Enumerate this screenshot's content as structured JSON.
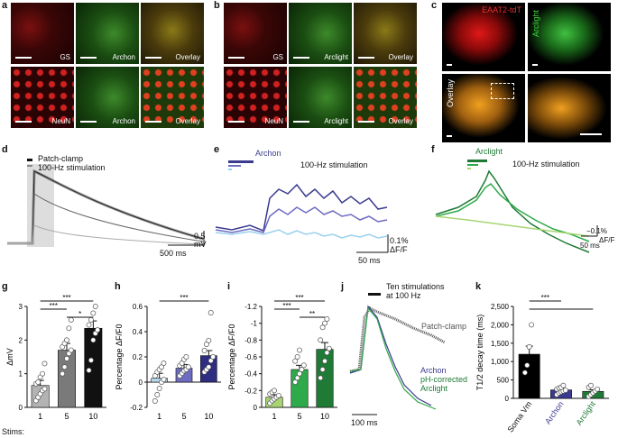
{
  "panel_labels": {
    "a": "a",
    "b": "b",
    "c": "c",
    "d": "d",
    "e": "e",
    "f": "f",
    "g": "g",
    "h": "h",
    "i": "i",
    "j": "j",
    "k": "k"
  },
  "panel_a": {
    "top": [
      "GS",
      "Archon",
      "Overlay"
    ],
    "bottom": [
      "NeuN",
      "Archon",
      "Overlay"
    ]
  },
  "panel_b": {
    "top": [
      "GS",
      "Arclight",
      "Overlay"
    ],
    "bottom": [
      "NeuN",
      "Arclight",
      "Overlay"
    ]
  },
  "panel_c": {
    "label_red": "EAAT2-tdT",
    "label_green": "Arclight",
    "label_overlay": "Overlay"
  },
  "panel_d": {
    "legend_patch": "Patch-clamp",
    "legend_stim": "100-Hz stimulation",
    "scale_mv_value": "0.5",
    "scale_mv_unit": "mV",
    "scale_time": "500 ms"
  },
  "panel_e": {
    "legend_name": "Archon",
    "legend_stim": "100-Hz stimulation",
    "scale_pct": "0.1%",
    "scale_dff": "ΔF/F",
    "scale_time": "50 ms"
  },
  "panel_f": {
    "legend_name": "Arclight",
    "legend_stim": "100-Hz stimulation",
    "scale_pct": "−0.1%",
    "scale_dff": "ΔF/F",
    "scale_time": "50 ms"
  },
  "panel_j": {
    "title_line1": "Ten stimulations",
    "title_line2": "at 100 Hz",
    "patch": "Patch-clamp",
    "archon": "Archon",
    "ph1": "pH-corrected",
    "ph2": "Arclight",
    "scale_time": "100 ms"
  },
  "stims_label": "Stims:",
  "chart_data": [
    {
      "id": "g",
      "type": "bar",
      "categories": [
        "1",
        "5",
        "10"
      ],
      "values": [
        0.65,
        1.7,
        2.35
      ],
      "errors": [
        0.15,
        0.2,
        0.22
      ],
      "ylabel": "ΔmV",
      "ylim": [
        0,
        3
      ],
      "yticks": [
        0,
        1,
        2,
        3
      ],
      "points": [
        [
          0.2,
          0.3,
          0.4,
          0.5,
          0.55,
          0.7,
          0.75,
          0.9,
          1.0,
          1.3
        ],
        [
          1.0,
          1.2,
          1.45,
          1.6,
          1.7,
          1.8,
          1.9,
          2.0,
          2.35,
          2.6
        ],
        [
          1.1,
          1.4,
          2.0,
          2.2,
          2.3,
          2.45,
          2.6,
          2.8,
          3.0
        ]
      ],
      "colors": [
        "#b3b3b3",
        "#7a7a7a",
        "#111111"
      ],
      "sig": [
        {
          "a": 0,
          "b": 2,
          "label": "***"
        },
        {
          "a": 0,
          "b": 1,
          "label": "***"
        },
        {
          "a": 1,
          "b": 2,
          "label": "*"
        }
      ]
    },
    {
      "id": "h",
      "type": "bar",
      "categories": [
        "1",
        "5",
        "10"
      ],
      "values": [
        0.03,
        0.11,
        0.21
      ],
      "errors": [
        0.04,
        0.03,
        0.04
      ],
      "ylabel": "Percentage ΔF/F0",
      "ylim": [
        -0.2,
        0.6
      ],
      "yticks": [
        -0.2,
        0,
        0.2,
        0.4,
        0.6
      ],
      "points": [
        [
          -0.15,
          -0.1,
          -0.05,
          0.0,
          0.02,
          0.05,
          0.08,
          0.1,
          0.12,
          0.15
        ],
        [
          0.05,
          0.07,
          0.09,
          0.1,
          0.12,
          0.13,
          0.15,
          0.18,
          0.2
        ],
        [
          0.08,
          0.1,
          0.12,
          0.17,
          0.2,
          0.25,
          0.3,
          0.33,
          0.55
        ]
      ],
      "colors": [
        "#b7daf0",
        "#6d6cc0",
        "#2d2d82"
      ],
      "sig": [
        {
          "a": 0,
          "b": 2,
          "label": "***"
        }
      ]
    },
    {
      "id": "i",
      "type": "bar",
      "categories": [
        "1",
        "5",
        "10"
      ],
      "values": [
        -0.12,
        -0.45,
        -0.69
      ],
      "errors": [
        0.03,
        0.05,
        0.08
      ],
      "ylabel": "Percentage ΔF/F0",
      "ylim": [
        0,
        -1.2
      ],
      "yticks": [
        0,
        -0.2,
        -0.4,
        -0.6,
        -0.8,
        -1.0,
        -1.2
      ],
      "points": [
        [
          -0.05,
          -0.08,
          -0.1,
          -0.12,
          -0.14,
          -0.16,
          -0.18,
          -0.2
        ],
        [
          -0.3,
          -0.35,
          -0.4,
          -0.45,
          -0.5,
          -0.55,
          -0.6,
          -0.68
        ],
        [
          -0.35,
          -0.45,
          -0.55,
          -0.65,
          -0.7,
          -0.8,
          -0.95,
          -1.0,
          -1.05
        ]
      ],
      "colors": [
        "#a8d572",
        "#2faa4a",
        "#1e7a35"
      ],
      "sig": [
        {
          "a": 0,
          "b": 2,
          "label": "***"
        },
        {
          "a": 0,
          "b": 1,
          "label": "***"
        },
        {
          "a": 1,
          "b": 2,
          "label": "**"
        }
      ]
    },
    {
      "id": "k",
      "type": "bar",
      "categories": [
        "Soma Vm",
        "Archon",
        "Arclight"
      ],
      "values": [
        1200,
        230,
        190
      ],
      "errors": [
        220,
        40,
        40
      ],
      "ylabel": "T1/2 decay time (ms)",
      "ylim": [
        0,
        2500
      ],
      "yticks": [
        0,
        500,
        1000,
        1500,
        2000,
        2500
      ],
      "points": [
        [
          700,
          900,
          1400,
          2000
        ],
        [
          100,
          150,
          180,
          200,
          220,
          250,
          280,
          300,
          350
        ],
        [
          50,
          100,
          150,
          200,
          250,
          300,
          350
        ]
      ],
      "colors": [
        "#000000",
        "#3a3a90",
        "#1e7a35"
      ],
      "sig": [
        {
          "a": 0,
          "b": 1,
          "label": "***"
        },
        {
          "a": 0,
          "b": 2,
          "label": ""
        }
      ]
    }
  ]
}
